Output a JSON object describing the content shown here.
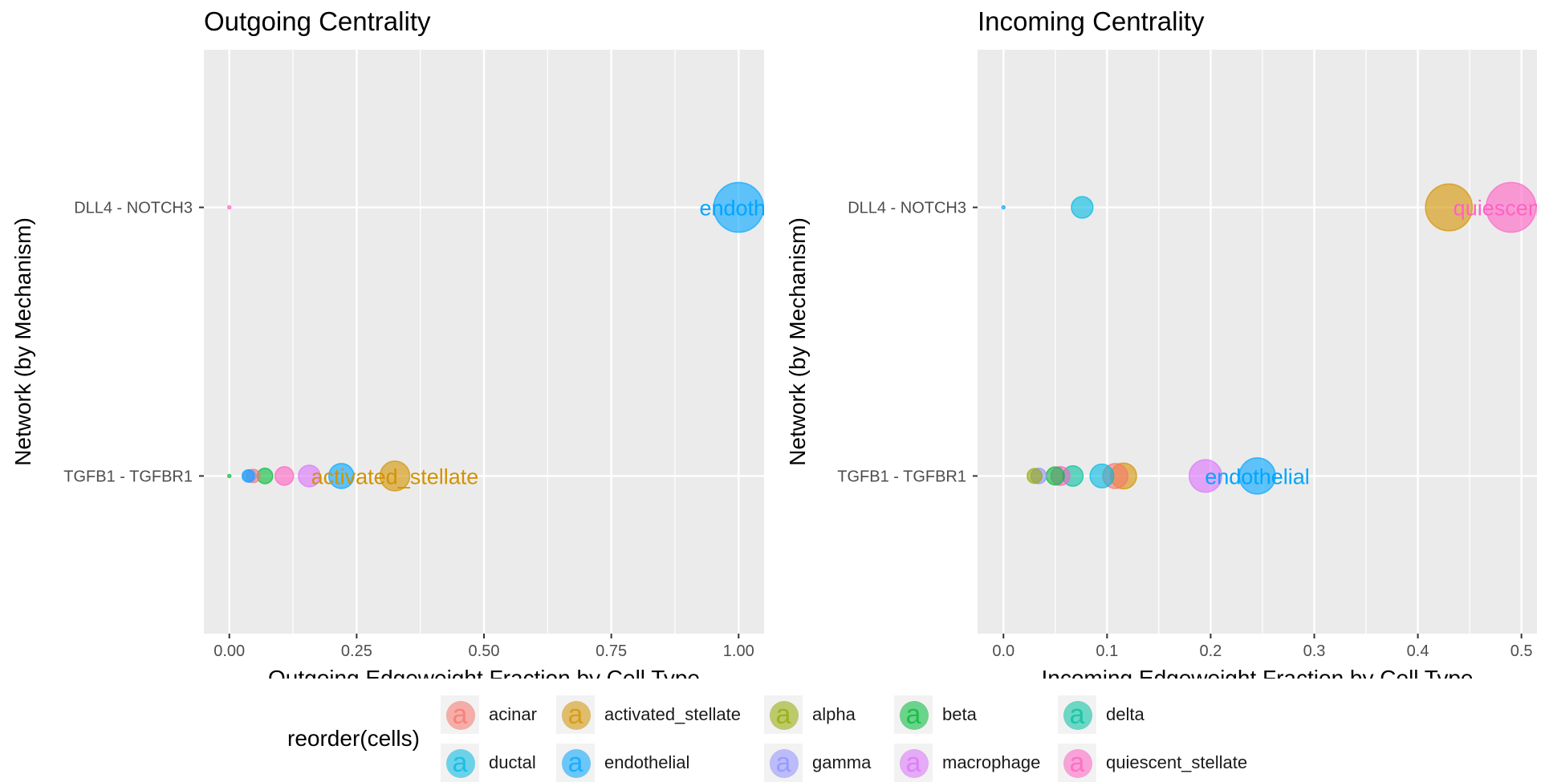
{
  "chart_data": [
    {
      "type": "scatter",
      "title": "Outgoing Centrality",
      "xlabel": "Outgoing Edgeweight Fraction by Cell Type",
      "ylabel": "Network (by Mechanism)",
      "xlim": [
        -0.05,
        1.05
      ],
      "x_ticks": [
        "0.00",
        "0.25",
        "0.50",
        "0.75",
        "1.00"
      ],
      "x_tick_values": [
        0,
        0.25,
        0.5,
        0.75,
        1.0
      ],
      "categories": [
        "DLL4 - NOTCH3",
        "TGFB1 - TGFBR1"
      ],
      "grid": true,
      "points": [
        {
          "category": "DLL4 - NOTCH3",
          "cell": "quiescent_stellate",
          "x": 0.0
        },
        {
          "category": "DLL4 - NOTCH3",
          "cell": "endothelial",
          "x": 1.0
        },
        {
          "category": "TGFB1 - TGFBR1",
          "cell": "beta",
          "x": 0.0
        },
        {
          "category": "TGFB1 - TGFBR1",
          "cell": "endothelial",
          "x": 0.037
        },
        {
          "category": "TGFB1 - TGFBR1",
          "cell": "gamma",
          "x": 0.04
        },
        {
          "category": "TGFB1 - TGFBR1",
          "cell": "acinar",
          "x": 0.047
        },
        {
          "category": "TGFB1 - TGFBR1",
          "cell": "beta",
          "x": 0.07
        },
        {
          "category": "TGFB1 - TGFBR1",
          "cell": "quiescent_stellate",
          "x": 0.108
        },
        {
          "category": "TGFB1 - TGFBR1",
          "cell": "macrophage",
          "x": 0.157
        },
        {
          "category": "TGFB1 - TGFBR1",
          "cell": "endothelial",
          "x": 0.22
        },
        {
          "category": "TGFB1 - TGFBR1",
          "cell": "activated_stellate",
          "x": 0.325
        }
      ],
      "annotations": [
        {
          "category": "DLL4 - NOTCH3",
          "x": 1.0,
          "text": "endothe",
          "cell": "endothelial"
        },
        {
          "category": "TGFB1 - TGFBR1",
          "x": 0.325,
          "text": "activated_stellate",
          "cell": "activated_stellate"
        }
      ]
    },
    {
      "type": "scatter",
      "title": "Incoming Centrality",
      "xlabel": "Incoming Edgeweight Fraction by Cell Type",
      "ylabel": "Network (by Mechanism)",
      "xlim": [
        -0.025,
        0.515
      ],
      "x_ticks": [
        "0.0",
        "0.1",
        "0.2",
        "0.3",
        "0.4",
        "0.5"
      ],
      "x_tick_values": [
        0,
        0.1,
        0.2,
        0.3,
        0.4,
        0.5
      ],
      "categories": [
        "DLL4 - NOTCH3",
        "TGFB1 - TGFBR1"
      ],
      "grid": true,
      "points": [
        {
          "category": "DLL4 - NOTCH3",
          "cell": "endothelial",
          "x": 0.0
        },
        {
          "category": "DLL4 - NOTCH3",
          "cell": "ductal",
          "x": 0.076
        },
        {
          "category": "DLL4 - NOTCH3",
          "cell": "activated_stellate",
          "x": 0.43
        },
        {
          "category": "DLL4 - NOTCH3",
          "cell": "quiescent_stellate",
          "x": 0.49
        },
        {
          "category": "TGFB1 - TGFBR1",
          "cell": "alpha",
          "x": 0.03
        },
        {
          "category": "TGFB1 - TGFBR1",
          "cell": "gamma",
          "x": 0.034
        },
        {
          "category": "TGFB1 - TGFBR1",
          "cell": "beta",
          "x": 0.05
        },
        {
          "category": "TGFB1 - TGFBR1",
          "cell": "quiescent_stellate",
          "x": 0.055
        },
        {
          "category": "TGFB1 - TGFBR1",
          "cell": "delta",
          "x": 0.067
        },
        {
          "category": "TGFB1 - TGFBR1",
          "cell": "ductal",
          "x": 0.095
        },
        {
          "category": "TGFB1 - TGFBR1",
          "cell": "acinar",
          "x": 0.108
        },
        {
          "category": "TGFB1 - TGFBR1",
          "cell": "activated_stellate",
          "x": 0.116
        },
        {
          "category": "TGFB1 - TGFBR1",
          "cell": "macrophage",
          "x": 0.195
        },
        {
          "category": "TGFB1 - TGFBR1",
          "cell": "endothelial",
          "x": 0.245
        }
      ],
      "annotations": [
        {
          "category": "DLL4 - NOTCH3",
          "x": 0.49,
          "text": "quiescent_s",
          "cell": "quiescent_stellate"
        },
        {
          "category": "TGFB1 - TGFBR1",
          "x": 0.245,
          "text": "endothelial",
          "cell": "endothelial"
        }
      ]
    }
  ],
  "legend": {
    "title": "reorder(cells)",
    "glyph": "a",
    "items": [
      {
        "label": "acinar",
        "color": "#F8766D"
      },
      {
        "label": "activated_stellate",
        "color": "#D39200"
      },
      {
        "label": "alpha",
        "color": "#93AA00"
      },
      {
        "label": "beta",
        "color": "#00BA38"
      },
      {
        "label": "delta",
        "color": "#00C19F"
      },
      {
        "label": "ductal",
        "color": "#00B9E3"
      },
      {
        "label": "endothelial",
        "color": "#00A5FF"
      },
      {
        "label": "gamma",
        "color": "#8F91FF"
      },
      {
        "label": "macrophage",
        "color": "#DB72FB"
      },
      {
        "label": "quiescent_stellate",
        "color": "#FF61C3"
      }
    ]
  }
}
